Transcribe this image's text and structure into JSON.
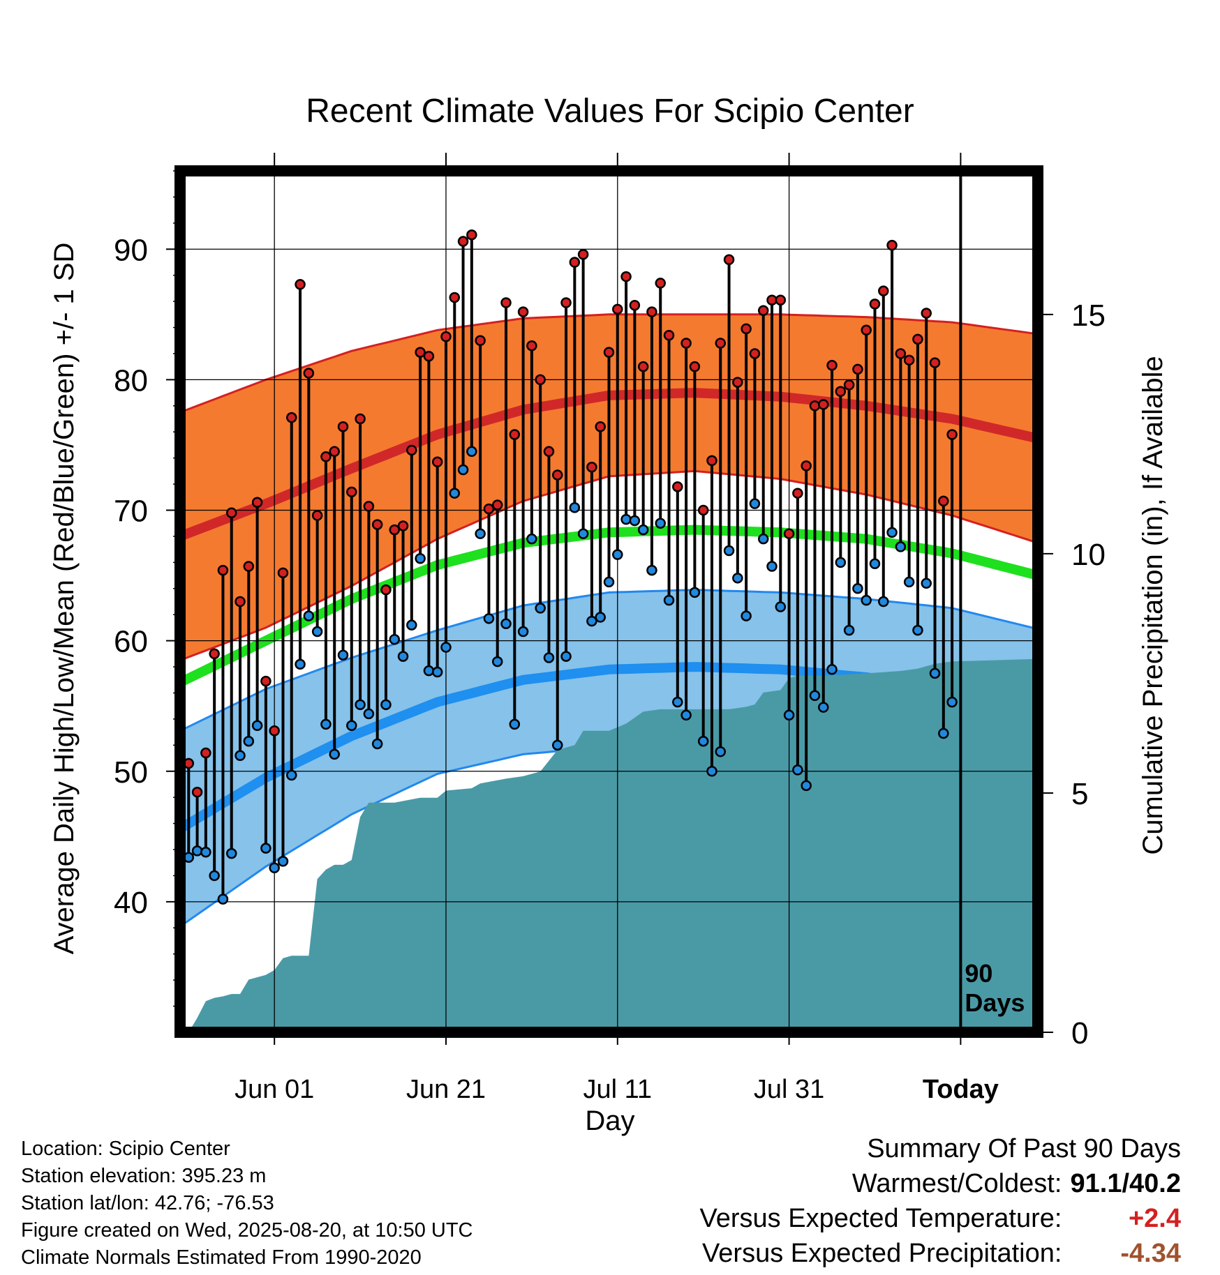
{
  "chart_data": {
    "type": "line",
    "title": "Recent Climate Values For Scipio Center",
    "xlabel": "Day",
    "ylabel": "Average Daily High/Low/Mean (Red/Blue/Green) +/- 1 SD",
    "y2label": "Cumulative Precipitation (in), If Available",
    "ylim": [
      30,
      96
    ],
    "y2lim": [
      0,
      18
    ],
    "yticks": [
      "40",
      "50",
      "60",
      "70",
      "80",
      "90"
    ],
    "y2ticks": [
      "0",
      "5",
      "10",
      "15"
    ],
    "xticks": [
      {
        "label": "Jun 01",
        "day": 11
      },
      {
        "label": "Jun 21",
        "day": 31
      },
      {
        "label": "Jul 11",
        "day": 51
      },
      {
        "label": "Jul 31",
        "day": 71
      },
      {
        "label": "Today",
        "day": 91
      }
    ],
    "today_marker": {
      "day": 91,
      "label_line1": "90",
      "label_line2": "Days"
    },
    "x_range_days": [
      0,
      100
    ],
    "normals": {
      "days": [
        0,
        10,
        20,
        30,
        40,
        50,
        60,
        70,
        80,
        90,
        100
      ],
      "high_mean": [
        68.0,
        70.5,
        73.2,
        75.8,
        77.7,
        78.8,
        79.0,
        78.7,
        78.0,
        77.0,
        75.5
      ],
      "high_sd": [
        9.5,
        9.5,
        9.0,
        8.0,
        7.0,
        6.2,
        6.0,
        6.3,
        6.8,
        7.4,
        8.0
      ],
      "mean": [
        56.8,
        60.0,
        63.2,
        65.8,
        67.5,
        68.3,
        68.5,
        68.3,
        67.8,
        66.7,
        65.0
      ],
      "low_mean": [
        45.6,
        49.5,
        52.7,
        55.3,
        57.0,
        57.8,
        58.0,
        57.8,
        57.2,
        56.2,
        54.4
      ],
      "low_sd": [
        7.5,
        6.8,
        6.0,
        5.5,
        5.7,
        5.9,
        5.9,
        5.9,
        6.0,
        6.3,
        6.5
      ]
    },
    "series": [
      {
        "name": "High",
        "color": "#d42020",
        "values": [
          50.6,
          48.4,
          51.4,
          59.0,
          65.4,
          69.8,
          63.0,
          65.7,
          70.6,
          56.9,
          53.1,
          65.2,
          77.1,
          87.3,
          80.5,
          69.6,
          74.1,
          74.5,
          76.4,
          71.4,
          77.0,
          70.3,
          68.9,
          63.9,
          68.5,
          68.8,
          74.6,
          82.1,
          81.8,
          73.7,
          83.3,
          86.3,
          90.6,
          91.1,
          83.0,
          70.1,
          70.4,
          85.9,
          75.8,
          85.2,
          82.6,
          80.0,
          74.5,
          72.7,
          85.9,
          89.0,
          89.6,
          73.3,
          76.4,
          82.1,
          85.4,
          87.9,
          85.7,
          81.0,
          85.2,
          87.4,
          83.4,
          71.8,
          82.8,
          81.0,
          70.0,
          73.8,
          82.8,
          89.2,
          79.8,
          83.9,
          82.0,
          85.3,
          86.1,
          86.1,
          68.2,
          71.3,
          73.4,
          78.0,
          78.1,
          81.1,
          79.1,
          79.6,
          80.8,
          83.8,
          85.8,
          86.8,
          90.3,
          82.0,
          81.5,
          83.1,
          85.1,
          81.3,
          70.7,
          75.8
        ]
      },
      {
        "name": "Low",
        "color": "#2288dd",
        "values": [
          43.4,
          43.9,
          43.8,
          42.0,
          40.2,
          43.7,
          51.2,
          52.3,
          53.5,
          44.1,
          42.6,
          43.1,
          49.7,
          58.2,
          61.9,
          60.7,
          53.6,
          51.3,
          58.9,
          53.5,
          55.1,
          54.4,
          52.1,
          55.1,
          60.1,
          58.8,
          61.2,
          66.3,
          57.7,
          57.6,
          59.5,
          71.3,
          73.1,
          74.5,
          68.2,
          61.7,
          58.4,
          61.3,
          53.6,
          60.7,
          67.8,
          62.5,
          58.7,
          52.0,
          58.8,
          70.2,
          68.2,
          61.5,
          61.8,
          64.5,
          66.6,
          69.3,
          69.2,
          68.5,
          65.4,
          69.0,
          63.1,
          55.3,
          54.3,
          63.7,
          52.3,
          50.0,
          51.5,
          66.9,
          64.8,
          61.9,
          70.5,
          67.8,
          65.7,
          62.6,
          54.3,
          50.1,
          48.9,
          55.8,
          54.9,
          57.8,
          66.0,
          60.8,
          64.0,
          63.1,
          65.9,
          63.0,
          68.3,
          67.2,
          64.5,
          60.8,
          64.4,
          57.5,
          52.9,
          55.3
        ]
      }
    ],
    "precip": {
      "days": [
        0,
        1,
        2,
        3,
        4,
        5,
        6,
        7,
        8,
        9,
        10,
        11,
        12,
        13,
        14,
        15,
        16,
        17,
        18,
        19,
        20,
        21,
        22,
        25,
        28,
        30,
        31,
        34,
        35,
        38,
        40,
        42,
        44,
        46,
        47,
        50,
        52,
        54,
        56,
        60,
        64,
        66,
        67,
        68,
        70,
        71,
        72,
        75,
        80,
        84,
        86,
        88,
        90,
        100
      ],
      "values": [
        0.0,
        0.0,
        0.3,
        0.65,
        0.72,
        0.75,
        0.8,
        0.8,
        1.1,
        1.15,
        1.2,
        1.3,
        1.55,
        1.6,
        1.6,
        1.6,
        3.2,
        3.4,
        3.5,
        3.5,
        3.6,
        4.5,
        4.8,
        4.8,
        4.9,
        4.9,
        5.05,
        5.1,
        5.2,
        5.3,
        5.35,
        5.45,
        5.9,
        6.0,
        6.3,
        6.3,
        6.45,
        6.7,
        6.75,
        6.75,
        6.75,
        6.8,
        6.85,
        7.1,
        7.15,
        7.4,
        7.45,
        7.45,
        7.5,
        7.55,
        7.6,
        7.7,
        7.75,
        7.8
      ]
    }
  },
  "footer": {
    "location": "Location: Scipio Center",
    "elevation": "Station elevation: 395.23 m",
    "latlon": "Station lat/lon: 42.76; -76.53",
    "created": "Figure created on Wed, 2025-08-20, at 10:50 UTC",
    "normals": "Climate Normals Estimated From 1990-2020"
  },
  "summary": {
    "title": "Summary Of Past 90 Days",
    "warmest_label": "Warmest/Coldest:",
    "warmest_value": "91.1/40.2",
    "temp_label": "Versus Expected Temperature:",
    "temp_value": "+2.4",
    "temp_color": "#d42020",
    "precip_label": "Versus Expected Precipitation:",
    "precip_value": "-4.34",
    "precip_color": "#a0522d"
  }
}
